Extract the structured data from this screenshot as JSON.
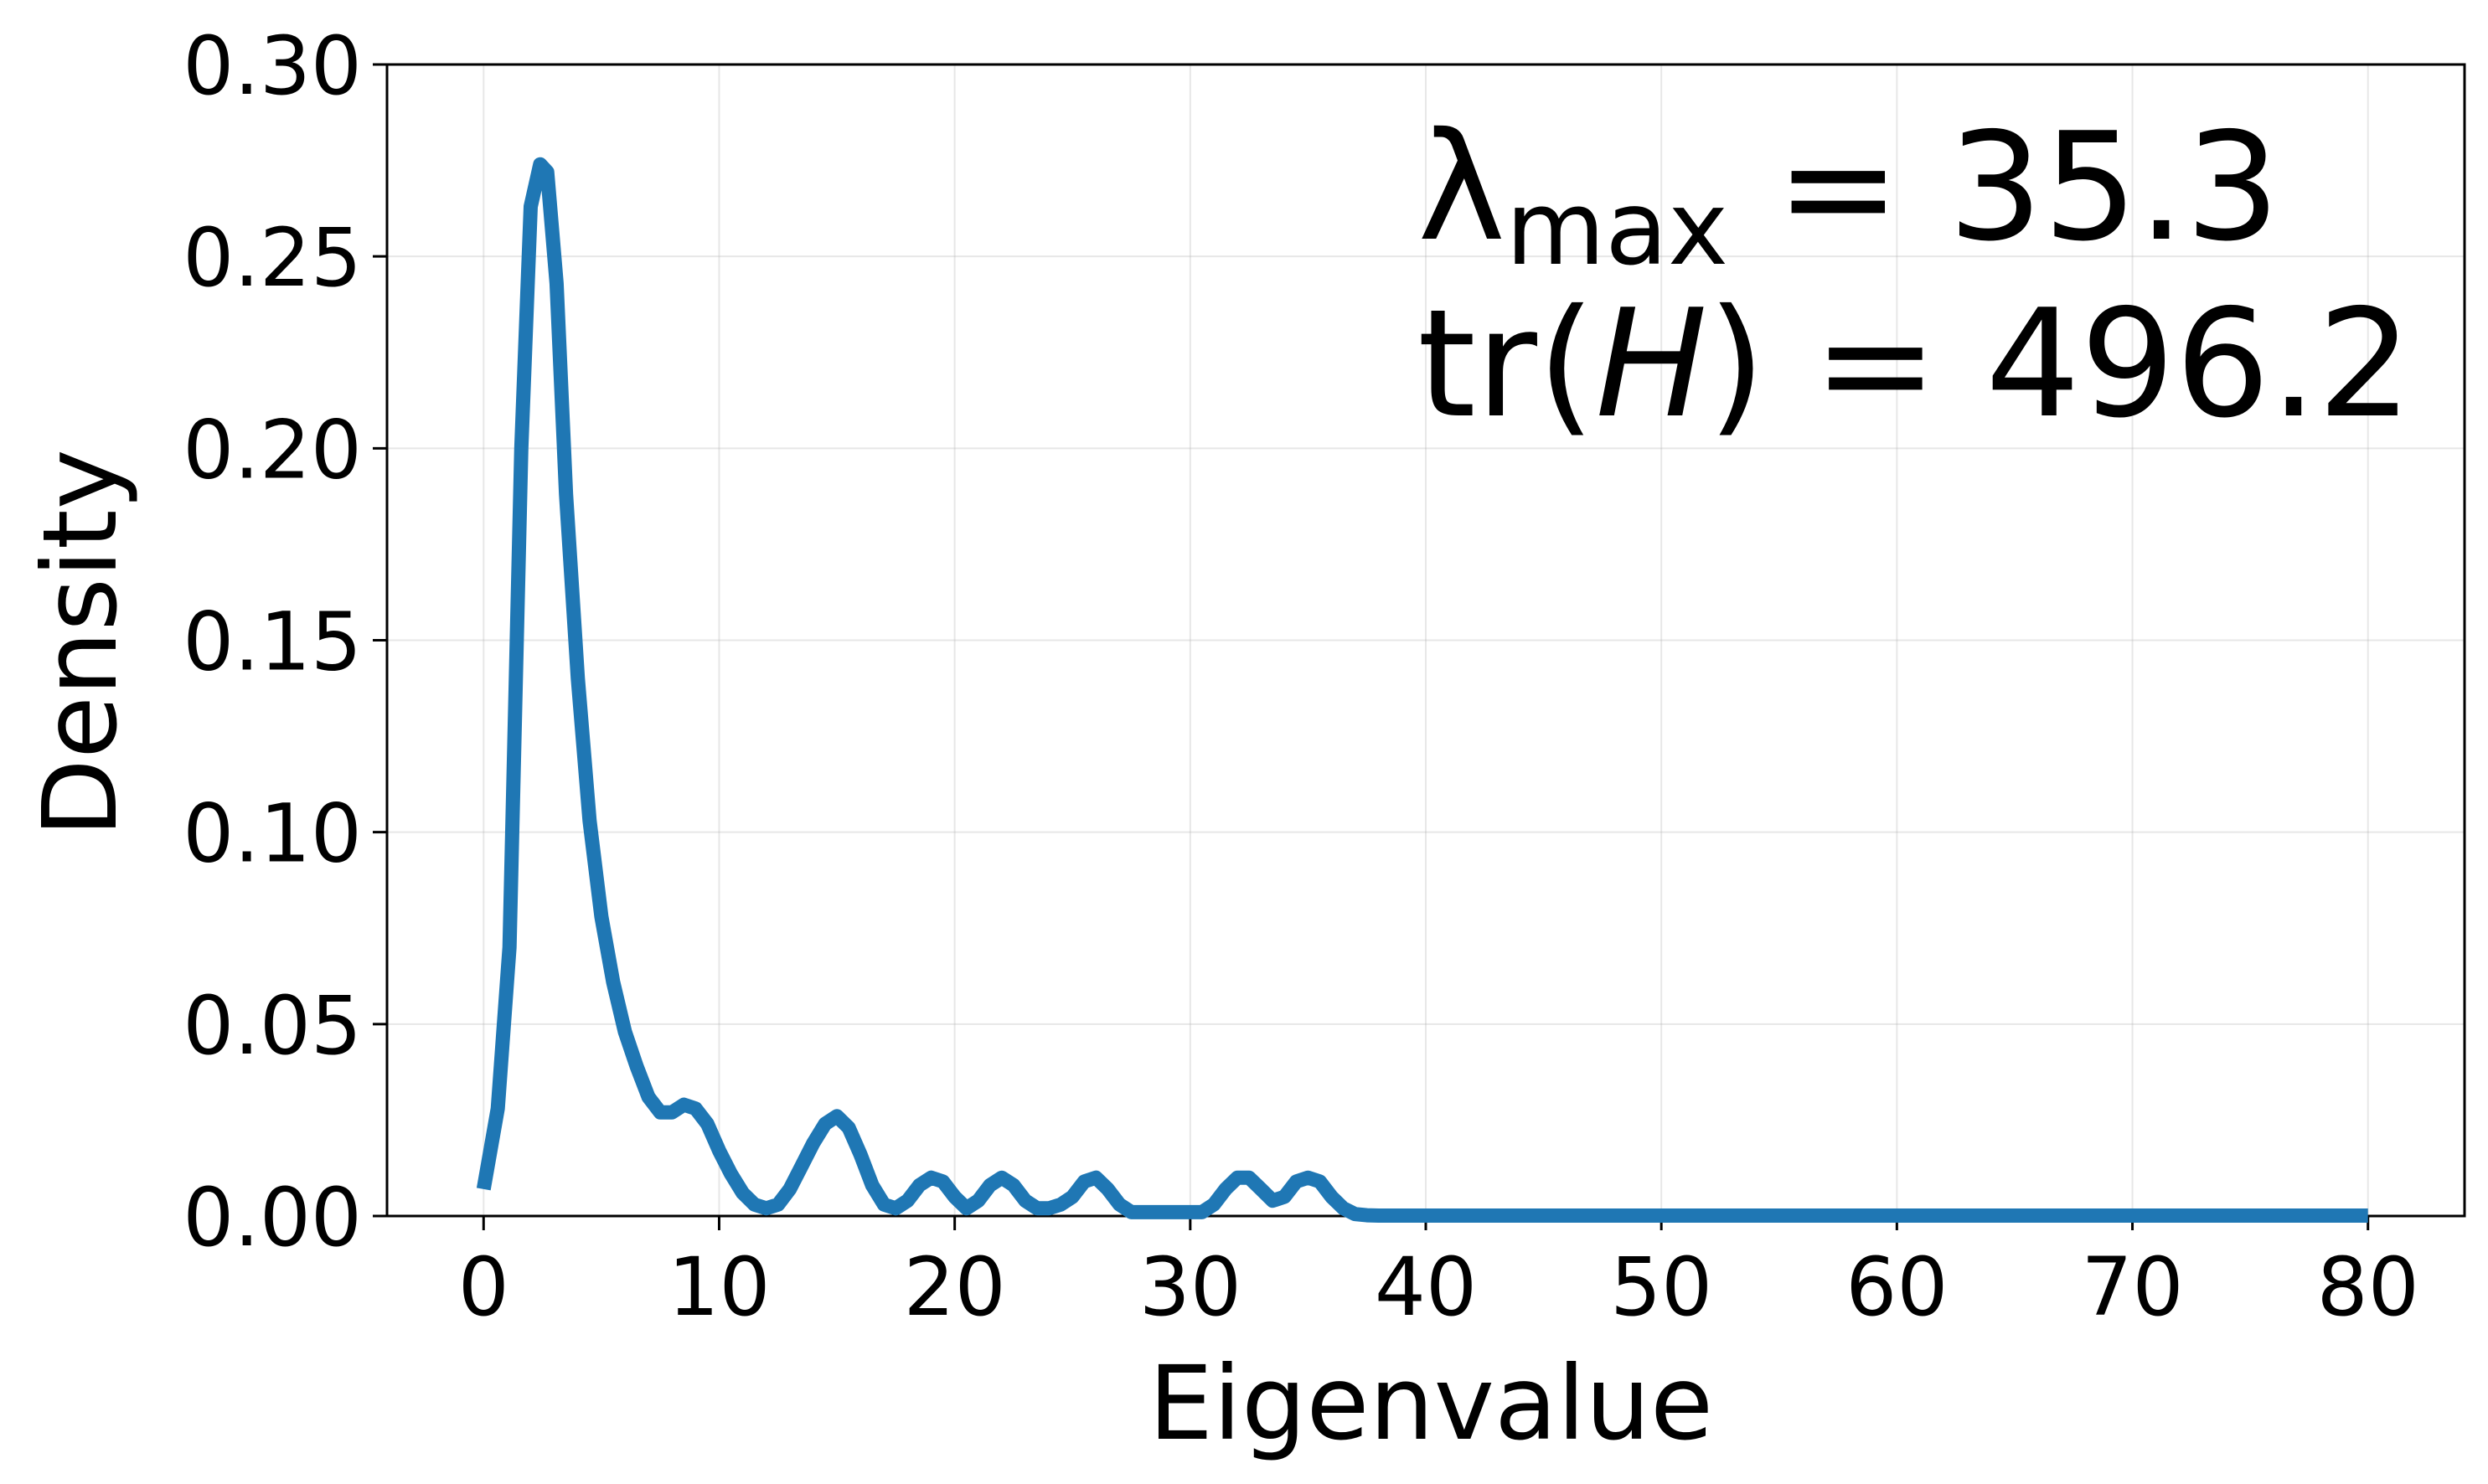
{
  "chart_data": {
    "type": "line",
    "xlabel": "Eigenvalue",
    "ylabel": "Density",
    "xlim": [
      -4.1,
      84.1
    ],
    "ylim": [
      0,
      0.3
    ],
    "xticks": [
      0,
      10,
      20,
      30,
      40,
      50,
      60,
      70,
      80
    ],
    "xtick_labels": [
      "0",
      "10",
      "20",
      "30",
      "40",
      "50",
      "60",
      "70",
      "80"
    ],
    "yticks": [
      0,
      0.05,
      0.1,
      0.15,
      0.2,
      0.25,
      0.3
    ],
    "ytick_labels": [
      "0.00",
      "0.05",
      "0.10",
      "0.15",
      "0.20",
      "0.25",
      "0.30"
    ],
    "grid": true,
    "line_color": "#1f77b4",
    "series": [
      {
        "x": [
          0,
          0.6,
          1.1,
          1.6,
          2.0,
          2.4,
          2.7,
          3.1,
          3.5,
          4.0,
          4.5,
          5.0,
          5.5,
          6.0,
          6.5,
          7.0,
          7.5,
          8.0,
          8.5,
          9.0,
          9.5,
          10.0,
          10.5,
          11.0,
          11.5,
          12.0,
          12.5,
          13.0,
          13.5,
          14.0,
          14.5,
          15.0,
          15.5,
          16.0,
          16.5,
          17.0,
          17.5,
          18.0,
          18.5,
          19.0,
          19.5,
          20.0,
          20.5,
          21.0,
          21.5,
          22.0,
          22.5,
          23.0,
          23.5,
          24.0,
          24.5,
          25.0,
          25.5,
          26.0,
          26.5,
          27.0,
          27.5,
          28.0,
          29.0,
          30.0,
          30.5,
          31.0,
          31.5,
          32.0,
          32.5,
          33.0,
          33.5,
          34.0,
          34.5,
          35.0,
          35.5,
          36.0,
          36.5,
          37.0,
          37.5,
          38.0,
          39.0,
          40.0,
          50.0,
          60.0,
          70.0,
          80.0
        ],
        "y": [
          0.007,
          0.028,
          0.07,
          0.2,
          0.263,
          0.274,
          0.272,
          0.243,
          0.188,
          0.14,
          0.103,
          0.078,
          0.061,
          0.048,
          0.039,
          0.031,
          0.027,
          0.027,
          0.029,
          0.028,
          0.024,
          0.017,
          0.011,
          0.006,
          0.003,
          0.002,
          0.003,
          0.007,
          0.013,
          0.019,
          0.024,
          0.026,
          0.023,
          0.016,
          0.008,
          0.003,
          0.002,
          0.004,
          0.008,
          0.01,
          0.009,
          0.005,
          0.002,
          0.004,
          0.008,
          0.01,
          0.008,
          0.004,
          0.002,
          0.002,
          0.003,
          0.005,
          0.009,
          0.01,
          0.007,
          0.003,
          0.001,
          0.001,
          0.001,
          0.001,
          0.001,
          0.003,
          0.007,
          0.01,
          0.01,
          0.007,
          0.004,
          0.005,
          0.009,
          0.01,
          0.009,
          0.005,
          0.002,
          0.0005,
          0.0002,
          0.0001,
          0.0001,
          0.0001,
          0.0001,
          0.0001,
          0.0001,
          0.0001
        ]
      }
    ],
    "annotations": {
      "lambda_symbol": "λ",
      "lambda_subscript": "max",
      "lambda_value": " = 35.3",
      "trace_prefix": "tr(",
      "trace_var": "H",
      "trace_value": ") = 496.2"
    }
  }
}
